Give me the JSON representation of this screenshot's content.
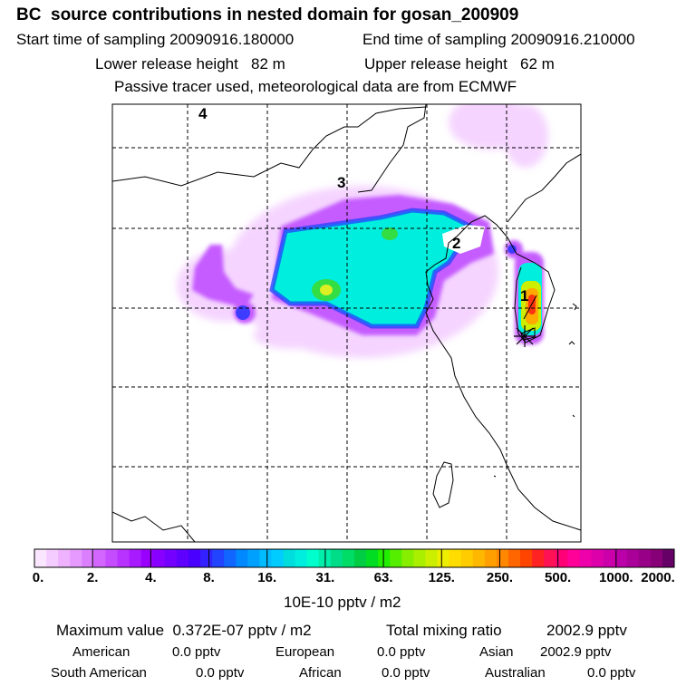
{
  "title": "BC  source contributions in nested domain for gosan_200909",
  "start_time": "Start time of sampling 20090916.180000",
  "end_time": "End time of sampling 20090916.210000",
  "lower_release": "Lower release height   82 m",
  "upper_release": "Upper release height   62 m",
  "tracer_note": "Passive tracer used, meteorological data are from ECMWF",
  "map_labels": [
    "1",
    "2",
    "3",
    "4"
  ],
  "colorbar": {
    "ticks": [
      "0.",
      "2.",
      "4.",
      "8.",
      "16.",
      "31.",
      "63.",
      "125.",
      "250.",
      "500.",
      "1000.",
      "2000."
    ],
    "units": "10E-10 pptv / m2",
    "colors": [
      "#fbe6ff",
      "#f5ccff",
      "#eeb2ff",
      "#e699ff",
      "#dc7fff",
      "#d266ff",
      "#c54cff",
      "#b833ff",
      "#a81aff",
      "#9900ff",
      "#8800ff",
      "#7400ff",
      "#5f00ff",
      "#4a00ff",
      "#3322ff",
      "#2244ff",
      "#1166ff",
      "#0088ff",
      "#00a0ff",
      "#00bbff",
      "#00ccff",
      "#00dddd",
      "#00eedd",
      "#00ffcc",
      "#00eeaa",
      "#00dd88",
      "#00dd66",
      "#00cc44",
      "#00dd22",
      "#22ee00",
      "#55ee00",
      "#88ee00",
      "#aaee00",
      "#ccee00",
      "#eeee00",
      "#ffdd00",
      "#ffcc00",
      "#ffb800",
      "#ffa000",
      "#ff8800",
      "#ff6600",
      "#ff4400",
      "#ff2222",
      "#ff1155",
      "#ff0077",
      "#ff0099",
      "#ee00aa",
      "#dd00aa",
      "#cc00aa",
      "#bb00aa",
      "#aa0099",
      "#990088",
      "#880077",
      "#660066"
    ]
  },
  "summary": {
    "max_value": "Maximum value  0.372E-07 pptv / m2",
    "total_mixing_label": "Total mixing ratio",
    "total_mixing_value": "2002.9 pptv",
    "regions": [
      {
        "label": "American",
        "value": "0.0 pptv"
      },
      {
        "label": "European",
        "value": "0.0 pptv"
      },
      {
        "label": "Asian",
        "value": "2002.9 pptv"
      },
      {
        "label": "South American",
        "value": "0.0 pptv"
      },
      {
        "label": "African",
        "value": "0.0 pptv"
      },
      {
        "label": "Australian",
        "value": "0.0 pptv"
      }
    ]
  }
}
